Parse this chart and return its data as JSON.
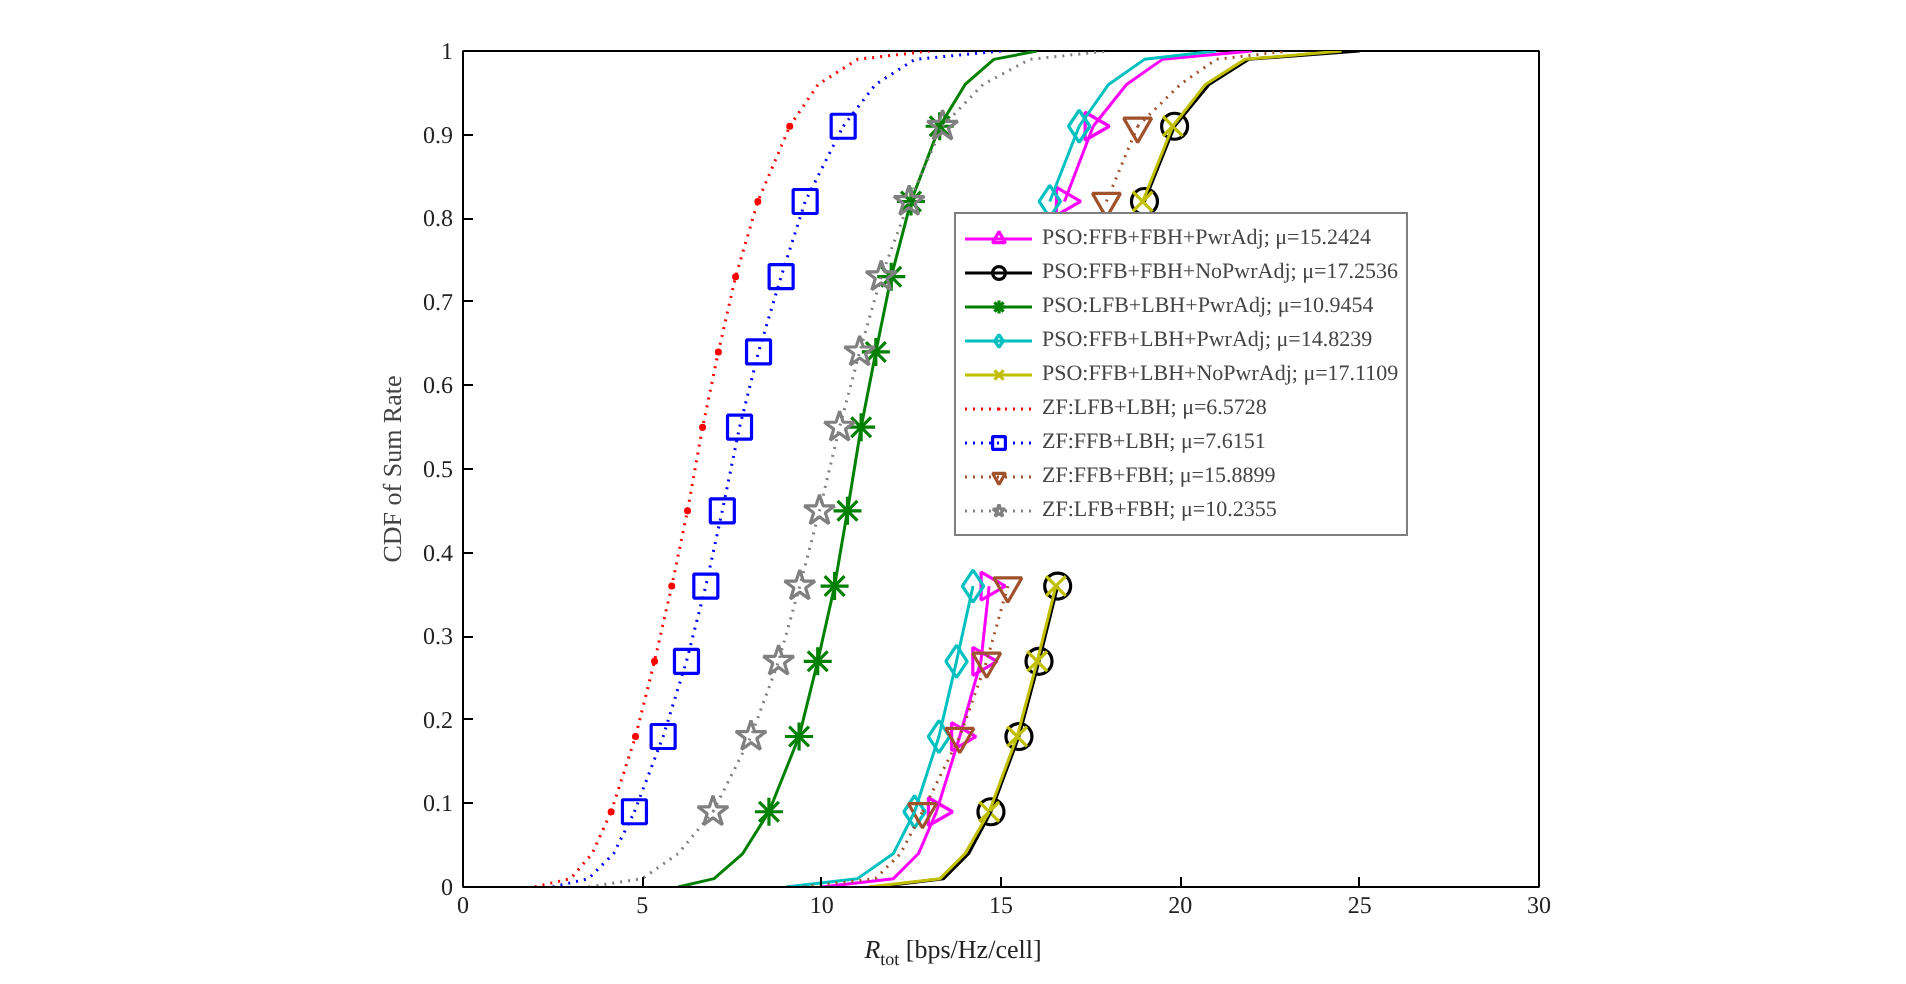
{
  "chart_data": {
    "type": "line",
    "xlabel": "R$_{tot}$ [bps/Hz/cell]",
    "ylabel": "CDF of Sum Rate",
    "xlim": [
      0,
      30
    ],
    "ylim": [
      0,
      1
    ],
    "xticks": [
      0,
      5,
      10,
      15,
      20,
      25,
      30
    ],
    "yticks": [
      0,
      0.1,
      0.2,
      0.3,
      0.4,
      0.5,
      0.6,
      0.7,
      0.8,
      0.9,
      1
    ],
    "grid": false,
    "legend": "top right",
    "series": [
      {
        "name": "PSO:FFB+FBH+PwrAdj; μ=15.2424",
        "color": "#ff00ff",
        "marker": "triangle_right",
        "line_style": "solid",
        "x": [
          13.2,
          13.85,
          14.44,
          14.67,
          15.0,
          15.4,
          15.8,
          16.2,
          16.77,
          17.57
        ],
        "values": [
          0.09,
          0.18,
          0.27,
          0.36,
          null,
          null,
          null,
          null,
          0.82,
          0.91
        ]
      },
      {
        "name": "PSO:FFB+FBH+NoPwrAdj; μ=17.2536",
        "color": "#000000",
        "marker": "circle",
        "line_style": "solid",
        "x": [
          14.72,
          15.5,
          16.06,
          16.58,
          17.0,
          17.5,
          17.9,
          18.4,
          19.0,
          19.84
        ],
        "values": [
          0.09,
          0.18,
          0.27,
          0.36,
          null,
          null,
          null,
          null,
          0.82,
          0.91
        ]
      },
      {
        "name": "PSO:LFB+LBH+PwrAdj; μ=10.9454",
        "color": "#008000",
        "marker": "cross",
        "line_style": "solid",
        "x": [
          8.53,
          9.37,
          9.89,
          10.36,
          10.72,
          11.1,
          11.51,
          11.94,
          12.49,
          13.29
        ],
        "values": [
          0.09,
          0.18,
          0.27,
          0.36,
          0.45,
          0.55,
          0.64,
          0.73,
          0.82,
          0.91
        ]
      },
      {
        "name": "PSO:FFB+LBH+PwrAdj; μ=14.8239",
        "color": "#00c0c0",
        "marker": "diamond",
        "line_style": "solid",
        "x": [
          12.59,
          13.27,
          13.76,
          14.22,
          14.6,
          15.0,
          15.4,
          15.8,
          16.36,
          17.18
        ],
        "values": [
          0.09,
          0.18,
          0.27,
          0.36,
          null,
          null,
          null,
          null,
          0.82,
          0.91
        ]
      },
      {
        "name": "PSO:FFB+LBH+NoPwrAdj; μ=17.1109",
        "color": "#c0c000",
        "marker": "x",
        "line_style": "solid",
        "x": [
          14.67,
          15.45,
          16.01,
          16.53,
          16.9,
          17.4,
          17.8,
          18.3,
          18.95,
          19.79
        ],
        "values": [
          0.09,
          0.18,
          0.27,
          0.36,
          null,
          null,
          null,
          null,
          0.82,
          0.91
        ]
      },
      {
        "name": "ZF:LFB+LBH; μ=6.5728",
        "color": "#ff0000",
        "marker": "dot",
        "line_style": "dotted",
        "x": [
          4.13,
          4.81,
          5.34,
          5.82,
          6.26,
          6.68,
          7.12,
          7.6,
          8.22,
          9.11
        ],
        "values": [
          0.09,
          0.18,
          0.27,
          0.36,
          0.45,
          0.55,
          0.64,
          0.73,
          0.82,
          0.91
        ]
      },
      {
        "name": "ZF:FFB+LBH; μ=7.6151",
        "color": "#0000ff",
        "marker": "square",
        "line_style": "dotted",
        "x": [
          4.78,
          5.58,
          6.23,
          6.77,
          7.23,
          7.71,
          8.24,
          8.87,
          9.54,
          10.6
        ],
        "values": [
          0.09,
          0.18,
          0.27,
          0.36,
          0.45,
          0.55,
          0.64,
          0.73,
          0.82,
          0.91
        ]
      },
      {
        "name": "ZF:FFB+FBH; μ=15.8899",
        "color": "#a0522d",
        "marker": "triangle",
        "line_style": "dotted",
        "x": [
          12.81,
          13.85,
          14.6,
          15.19,
          15.7,
          16.2,
          16.7,
          17.2,
          17.94,
          18.81
        ],
        "values": [
          0.09,
          0.18,
          0.27,
          0.36,
          null,
          null,
          null,
          null,
          0.82,
          0.91
        ]
      },
      {
        "name": "ZF:LFB+FBH; μ=10.2355",
        "color": "#808080",
        "marker": "star",
        "line_style": "dotted",
        "x": [
          6.97,
          8.03,
          8.8,
          9.39,
          9.94,
          10.5,
          11.06,
          11.66,
          12.44,
          13.37
        ],
        "values": [
          0.09,
          0.18,
          0.27,
          0.36,
          0.45,
          0.55,
          0.64,
          0.73,
          0.82,
          0.91
        ]
      },
      {
        "color": "#ff00ff",
        "marker": "none",
        "line_style": "solid",
        "x": [
          10.0,
          12.0,
          12.7,
          13.2,
          15.0,
          17.57,
          18.5,
          19.5,
          22.0
        ],
        "values": [
          0,
          0.01,
          0.04,
          0.09,
          null,
          0.91,
          0.96,
          0.99,
          1
        ]
      },
      {
        "color": "#000000",
        "marker": "none",
        "line_style": "solid",
        "x": [
          11.5,
          13.4,
          14.1,
          14.72,
          17.0,
          19.84,
          20.8,
          21.9,
          25.0
        ],
        "values": [
          0,
          0.01,
          0.04,
          0.09,
          null,
          0.91,
          0.96,
          0.99,
          1
        ]
      },
      {
        "color": "#008000",
        "marker": "none",
        "line_style": "solid",
        "x": [
          6.0,
          7.0,
          7.8,
          8.53,
          11.0,
          13.29,
          14.0,
          14.8,
          16.0
        ],
        "values": [
          0,
          0.01,
          0.04,
          0.09,
          null,
          0.91,
          0.96,
          0.99,
          1
        ]
      },
      {
        "color": "#00c0c0",
        "marker": "none",
        "line_style": "solid",
        "x": [
          9.0,
          11.0,
          12.0,
          12.59,
          15.0,
          17.18,
          18.0,
          19.0,
          21.0
        ],
        "values": [
          0,
          0.01,
          0.04,
          0.09,
          null,
          0.91,
          0.96,
          0.99,
          1
        ]
      },
      {
        "color": "#c0c000",
        "marker": "none",
        "line_style": "solid",
        "x": [
          11.3,
          13.3,
          14.0,
          14.67,
          17.0,
          19.79,
          20.7,
          21.8,
          24.5
        ],
        "values": [
          0,
          0.01,
          0.04,
          0.09,
          null,
          0.91,
          0.96,
          0.99,
          1
        ]
      },
      {
        "color": "#ff0000",
        "marker": "none",
        "line_style": "dotted",
        "x": [
          2.0,
          3.0,
          3.6,
          4.13,
          6.5,
          9.11,
          9.9,
          11.0,
          13.0
        ],
        "values": [
          0,
          0.01,
          0.04,
          0.09,
          null,
          0.91,
          0.96,
          0.99,
          1
        ]
      },
      {
        "color": "#0000ff",
        "marker": "none",
        "line_style": "dotted",
        "x": [
          2.5,
          3.5,
          4.2,
          4.78,
          7.5,
          10.6,
          11.5,
          12.6,
          15.0
        ],
        "values": [
          0,
          0.01,
          0.04,
          0.09,
          null,
          0.91,
          0.96,
          0.99,
          1
        ]
      },
      {
        "color": "#a0522d",
        "marker": "none",
        "line_style": "dotted",
        "x": [
          9.5,
          11.5,
          12.2,
          12.81,
          15.5,
          18.81,
          20.0,
          21.0,
          23.0
        ],
        "values": [
          0,
          0.01,
          0.04,
          0.09,
          null,
          0.91,
          0.96,
          0.99,
          1
        ]
      },
      {
        "color": "#808080",
        "marker": "none",
        "line_style": "dotted",
        "x": [
          3.5,
          5.0,
          6.0,
          6.97,
          10.0,
          13.37,
          14.5,
          15.8,
          18.0
        ],
        "values": [
          0,
          0.01,
          0.04,
          0.09,
          null,
          0.91,
          0.96,
          0.99,
          1
        ]
      }
    ]
  }
}
